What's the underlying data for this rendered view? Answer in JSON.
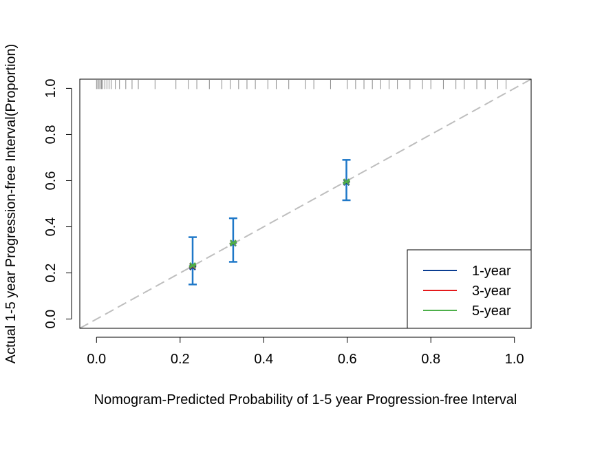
{
  "chart_data": {
    "type": "scatter",
    "xlabel": "Nomogram-Predicted Probability of 1-5 year Progression-free Interval",
    "ylabel": "Actual 1-5 year Progression-free Interval(Proportion)",
    "xlim": [
      -0.04,
      1.04
    ],
    "ylim": [
      -0.04,
      1.04
    ],
    "x_ticks": [
      "0.0",
      "0.2",
      "0.4",
      "0.6",
      "0.8",
      "1.0"
    ],
    "y_ticks": [
      "0.0",
      "0.2",
      "0.4",
      "0.6",
      "0.8",
      "1.0"
    ],
    "grid": false,
    "reference_line": {
      "from": [
        -0.04,
        -0.04
      ],
      "to": [
        1.04,
        1.04
      ],
      "style": "dashed",
      "color": "#BEBEBE"
    },
    "legend": {
      "position": "bottom-right"
    },
    "series": [
      {
        "name": "1-year",
        "color": "#0B3D91",
        "points": [
          {
            "x": 0.23,
            "y": 0.225
          },
          {
            "x": 0.327,
            "y": 0.328
          },
          {
            "x": 0.598,
            "y": 0.592
          }
        ]
      },
      {
        "name": "3-year",
        "color": "#E41A1C",
        "points": [
          {
            "x": 0.23,
            "y": 0.23
          },
          {
            "x": 0.327,
            "y": 0.33
          },
          {
            "x": 0.598,
            "y": 0.595
          }
        ]
      },
      {
        "name": "5-year",
        "color": "#4DAF4A",
        "points": [
          {
            "x": 0.23,
            "y": 0.232
          },
          {
            "x": 0.327,
            "y": 0.33
          },
          {
            "x": 0.598,
            "y": 0.595
          }
        ]
      }
    ],
    "error_bars": {
      "color": "#1F78C8",
      "bars": [
        {
          "x": 0.23,
          "lower": 0.15,
          "upper": 0.355
        },
        {
          "x": 0.327,
          "lower": 0.248,
          "upper": 0.437
        },
        {
          "x": 0.598,
          "lower": 0.515,
          "upper": 0.69
        }
      ]
    },
    "rug": {
      "y": 1.0,
      "x": [
        0.0,
        0.003,
        0.006,
        0.009,
        0.012,
        0.015,
        0.02,
        0.025,
        0.03,
        0.035,
        0.045,
        0.055,
        0.07,
        0.085,
        0.1,
        0.14,
        0.19,
        0.22,
        0.24,
        0.27,
        0.3,
        0.32,
        0.34,
        0.36,
        0.38,
        0.41,
        0.43,
        0.46,
        0.5,
        0.52,
        0.56,
        0.6,
        0.62,
        0.64,
        0.66,
        0.68,
        0.7,
        0.72,
        0.75,
        0.78,
        0.8,
        0.83,
        0.86,
        0.88,
        0.91,
        0.93,
        0.96,
        0.98
      ]
    }
  }
}
